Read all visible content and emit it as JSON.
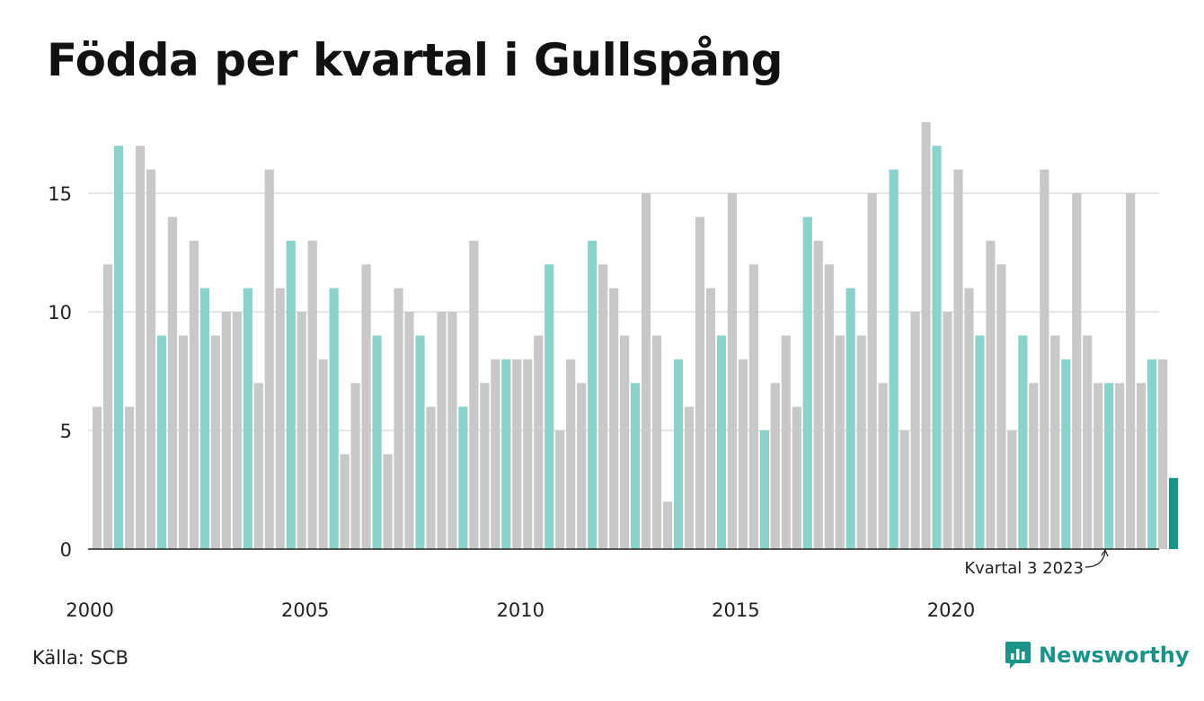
{
  "chart_data": {
    "type": "bar",
    "title": "Födda per kvartal i Gullspång",
    "xlabel": "",
    "ylabel": "",
    "ylim": [
      0,
      18.5
    ],
    "yticks": [
      0,
      5,
      10,
      15
    ],
    "grid": true,
    "x_tick_labels": [
      "2000",
      "2005",
      "2010",
      "2015",
      "2020"
    ],
    "annotation": "Kvartal 3 2023",
    "highlight_quarter": 3,
    "colors": {
      "default": "#c8c8c8",
      "highlight": "#88d4cc",
      "latest": "#1a9488"
    },
    "values": [
      6,
      12,
      17,
      6,
      17,
      16,
      9,
      14,
      9,
      13,
      11,
      9,
      10,
      10,
      11,
      7,
      16,
      11,
      13,
      10,
      13,
      8,
      11,
      4,
      7,
      12,
      9,
      4,
      11,
      10,
      9,
      6,
      10,
      10,
      6,
      13,
      7,
      8,
      8,
      8,
      8,
      9,
      12,
      5,
      8,
      7,
      13,
      12,
      11,
      9,
      7,
      15,
      9,
      2,
      8,
      6,
      14,
      11,
      9,
      15,
      8,
      12,
      5,
      7,
      9,
      6,
      14,
      13,
      12,
      9,
      11,
      9,
      15,
      7,
      16,
      5,
      10,
      18,
      17,
      10,
      16,
      11,
      9,
      13,
      12,
      5,
      9,
      7,
      16,
      9,
      8,
      15,
      9,
      7,
      7,
      7,
      15,
      7,
      8,
      8,
      3
    ]
  },
  "footer": {
    "source": "Källa: SCB",
    "brand": "Newsworthy"
  }
}
